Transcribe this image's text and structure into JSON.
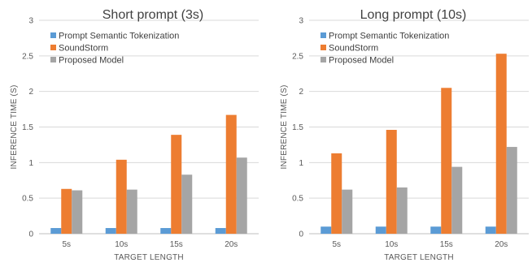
{
  "chart_data": [
    {
      "type": "bar",
      "title": "Short prompt (3s)",
      "xlabel": "TARGET LENGTH",
      "ylabel": "INFERENCE TIME (S)",
      "categories": [
        "5s",
        "10s",
        "15s",
        "20s"
      ],
      "ylim": [
        0,
        3
      ],
      "yticks": [
        "0",
        "0.5",
        "1",
        "1.5",
        "2",
        "2.5",
        "3"
      ],
      "grid": true,
      "legend_position": "top-left",
      "series": [
        {
          "name": "Prompt Semantic Tokenization",
          "color": "#5B9BD5",
          "values": [
            0.08,
            0.08,
            0.08,
            0.08
          ]
        },
        {
          "name": "SoundStorm",
          "color": "#ED7D31",
          "values": [
            0.63,
            1.04,
            1.39,
            1.67
          ]
        },
        {
          "name": "Proposed Model",
          "color": "#A5A5A5",
          "values": [
            0.61,
            0.62,
            0.83,
            1.07
          ]
        }
      ]
    },
    {
      "type": "bar",
      "title": "Long prompt (10s)",
      "xlabel": "TARGET LENGTH",
      "ylabel": "INFERENCE TIME (S)",
      "categories": [
        "5s",
        "10s",
        "15s",
        "20s"
      ],
      "ylim": [
        0,
        3
      ],
      "yticks": [
        "0",
        "0.5",
        "1",
        "1.5",
        "2",
        "2.5",
        "3"
      ],
      "grid": true,
      "legend_position": "top-left",
      "series": [
        {
          "name": "Prompt Semantic Tokenization",
          "color": "#5B9BD5",
          "values": [
            0.1,
            0.1,
            0.1,
            0.1
          ]
        },
        {
          "name": "SoundStorm",
          "color": "#ED7D31",
          "values": [
            1.13,
            1.46,
            2.05,
            2.53
          ]
        },
        {
          "name": "Proposed Model",
          "color": "#A5A5A5",
          "values": [
            0.62,
            0.65,
            0.94,
            1.22
          ]
        }
      ]
    }
  ]
}
